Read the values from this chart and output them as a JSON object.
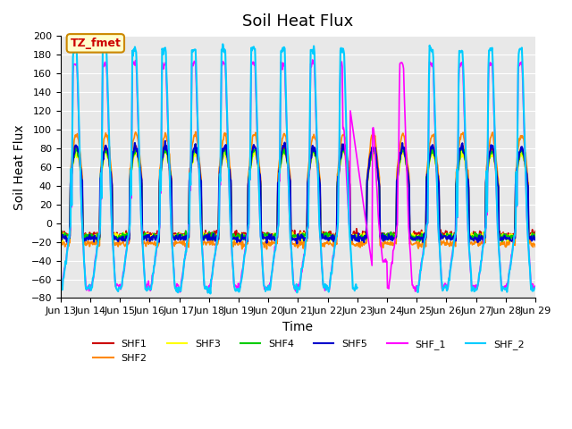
{
  "title": "Soil Heat Flux",
  "xlabel": "Time",
  "ylabel": "Soil Heat Flux",
  "ylim": [
    -80,
    200
  ],
  "xlim_start": 0,
  "xlim_end": 16,
  "x_tick_labels": [
    "Jun 13",
    "Jun 14",
    "Jun 15",
    "Jun 16",
    "Jun 17",
    "Jun 18",
    "Jun 19",
    "Jun 20",
    "Jun 21",
    "Jun 22",
    "Jun 23",
    "Jun 24",
    "Jun 25",
    "Jun 26",
    "Jun 27",
    "Jun 28",
    "Jun 29"
  ],
  "series": {
    "SHF1": {
      "color": "#cc0000",
      "lw": 1.2
    },
    "SHF2": {
      "color": "#ff8800",
      "lw": 1.2
    },
    "SHF3": {
      "color": "#ffff00",
      "lw": 1.2
    },
    "SHF4": {
      "color": "#00cc00",
      "lw": 1.2
    },
    "SHF5": {
      "color": "#0000cc",
      "lw": 1.5
    },
    "SHF_1": {
      "color": "#ff00ff",
      "lw": 1.2
    },
    "SHF_2": {
      "color": "#00ccff",
      "lw": 1.5
    }
  },
  "annotation_text": "TZ_fmet",
  "annotation_color": "#cc0000",
  "annotation_bg": "#ffffcc",
  "annotation_border": "#cc8800",
  "background_color": "#e8e8e8",
  "title_fontsize": 13,
  "axis_label_fontsize": 10,
  "tick_fontsize": 8
}
